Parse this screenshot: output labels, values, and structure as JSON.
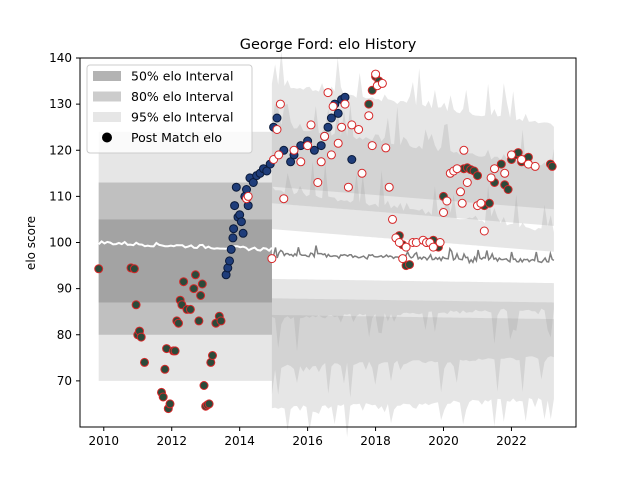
{
  "chart_data": {
    "type": "scatter",
    "title": "George Ford: elo History",
    "xlabel": "",
    "ylabel": "elo score",
    "xlim": [
      2009.3,
      2023.9
    ],
    "ylim": [
      60,
      140
    ],
    "xticks": [
      "2010",
      "2012",
      "2014",
      "2016",
      "2018",
      "2020",
      "2022"
    ],
    "yticks": [
      "70",
      "80",
      "90",
      "100",
      "110",
      "120",
      "130",
      "140"
    ],
    "grid": false,
    "legend_position": "top-left",
    "legend": [
      {
        "label": "50% elo Interval",
        "color": "#9a9a9a",
        "opacity": 0.75
      },
      {
        "label": "80% elo Interval",
        "color": "#9a9a9a",
        "opacity": 0.5
      },
      {
        "label": "95% elo Interval",
        "color": "#9a9a9a",
        "opacity": 0.25
      },
      {
        "label": "Post Match elo",
        "color": "#000000",
        "marker": "circle"
      }
    ],
    "colors": {
      "band": "#9a9a9a",
      "edge_red": "#d62728",
      "fill_navy": "#1f3d7a",
      "fill_dark": "#2c4a3a",
      "mean_line": "#7f7f7f",
      "white_line": "#ffffff"
    },
    "left_block": {
      "x_range": [
        2009.85,
        2014.95
      ],
      "bands": [
        {
          "level": "95%",
          "lower": 70,
          "upper": 124
        },
        {
          "level": "80%",
          "lower": 80,
          "upper": 113
        },
        {
          "level": "50%",
          "lower": 87,
          "upper": 105
        }
      ],
      "center_line": {
        "start": 100,
        "end": 98.5
      }
    },
    "right_block": {
      "x_range": [
        2014.95,
        2023.25
      ],
      "base_bands": [
        {
          "level": "95%",
          "lower": 64.5,
          "upper": 134
        },
        {
          "level": "80%",
          "lower": 73.5,
          "upper": 125
        },
        {
          "level": "50%",
          "lower": 84,
          "upper": 111
        }
      ],
      "mean_line": {
        "start": 97.5,
        "end": 96
      }
    },
    "series": [
      {
        "style": "navy-filled",
        "x": [
          2013.6,
          2013.65,
          2013.7,
          2013.75,
          2013.8,
          2013.82,
          2013.85,
          2013.9,
          2013.95,
          2014.0,
          2014.05,
          2014.1,
          2014.15,
          2014.2,
          2014.25,
          2014.3,
          2014.4,
          2014.5,
          2014.6,
          2014.7,
          2014.8,
          2014.9,
          2015.0,
          2015.1,
          2015.3,
          2015.5,
          2015.6,
          2015.8,
          2016.0,
          2016.2,
          2016.4,
          2016.5,
          2016.6,
          2016.7,
          2016.8,
          2016.9,
          2017.0,
          2017.1,
          2017.3
        ],
        "y": [
          93,
          94.5,
          96,
          98.5,
          101,
          103,
          108,
          112,
          105.5,
          106,
          104.5,
          102,
          110,
          111.5,
          108,
          114,
          113,
          114.5,
          115,
          116,
          115.5,
          117,
          125,
          127,
          120,
          117.5,
          119,
          121,
          122,
          120,
          121,
          123,
          125,
          127,
          130,
          128,
          131,
          131.5,
          118
        ]
      },
      {
        "style": "dark-filled",
        "x": [
          2009.85,
          2010.8,
          2010.9,
          2010.95,
          2011.0,
          2011.05,
          2011.1,
          2011.2,
          2011.7,
          2011.75,
          2011.8,
          2011.85,
          2011.9,
          2011.95,
          2012.05,
          2012.1,
          2012.15,
          2012.2,
          2012.25,
          2012.3,
          2012.35,
          2012.45,
          2012.55,
          2012.65,
          2012.7,
          2012.8,
          2012.85,
          2012.9,
          2012.95,
          2013.0,
          2013.05,
          2013.1,
          2013.15,
          2013.2,
          2013.3,
          2013.4,
          2013.45,
          2017.8,
          2017.9,
          2018.0,
          2018.1,
          2018.7,
          2018.8,
          2018.9,
          2019.0,
          2019.5,
          2019.7,
          2019.85,
          2020.0,
          2020.6,
          2020.7,
          2020.8,
          2020.9,
          2021.0,
          2021.2,
          2021.35,
          2021.5,
          2021.7,
          2021.8,
          2021.9,
          2022.0,
          2022.1,
          2022.2,
          2022.3,
          2022.4,
          2022.5,
          2023.15,
          2023.2
        ],
        "y": [
          94.3,
          94.5,
          94.3,
          86.5,
          80,
          80.8,
          79.5,
          74,
          67.5,
          66.5,
          72.5,
          77,
          64,
          65,
          76.5,
          76.5,
          83,
          82.5,
          87.5,
          86.5,
          91.5,
          85.5,
          85.5,
          90,
          93,
          83,
          88.5,
          91,
          69,
          64.5,
          64.8,
          65,
          74,
          75.5,
          82.5,
          84,
          83,
          130,
          133,
          136,
          135,
          101.5,
          99.5,
          95,
          95.2,
          100,
          100.5,
          99,
          110,
          116,
          116.2,
          115.8,
          115.5,
          114.5,
          108,
          108.5,
          113,
          117,
          112.5,
          111.5,
          118,
          119,
          119.5,
          117.5,
          118,
          118.5,
          117,
          116.5
        ]
      },
      {
        "style": "open-red",
        "x": [
          2014.2,
          2014.25,
          2014.95,
          2015.0,
          2015.1,
          2015.15,
          2015.2,
          2015.3,
          2015.6,
          2015.8,
          2016.0,
          2016.1,
          2016.3,
          2016.4,
          2016.5,
          2016.6,
          2016.7,
          2016.75,
          2016.9,
          2017.0,
          2017.1,
          2017.2,
          2017.3,
          2017.5,
          2017.6,
          2017.8,
          2017.9,
          2018.0,
          2018.05,
          2018.2,
          2018.3,
          2018.4,
          2018.5,
          2018.6,
          2018.7,
          2018.8,
          2018.9,
          2019.1,
          2019.2,
          2019.4,
          2019.5,
          2019.6,
          2019.7,
          2019.9,
          2020.0,
          2020.1,
          2020.2,
          2020.3,
          2020.4,
          2020.5,
          2020.55,
          2020.6,
          2020.7,
          2021.0,
          2021.1,
          2021.2,
          2021.4,
          2021.5,
          2021.8,
          2022.0,
          2022.3,
          2022.5,
          2022.7
        ],
        "y": [
          109.5,
          110,
          96.5,
          118,
          124.5,
          119,
          130,
          109.5,
          120,
          117.5,
          121,
          125.5,
          113,
          117.5,
          123,
          132.5,
          119,
          129.5,
          121.5,
          125,
          130,
          112,
          125.5,
          124.5,
          115,
          127.5,
          121,
          136.5,
          134,
          134.5,
          120.5,
          112,
          105,
          101,
          100,
          96.5,
          99,
          100,
          100,
          100.5,
          100,
          100,
          99,
          100,
          106.5,
          109,
          115,
          115.5,
          116,
          111,
          108.5,
          120,
          113,
          108,
          108.5,
          102.5,
          114,
          116,
          115,
          119,
          118,
          117,
          116.5
        ]
      }
    ]
  }
}
